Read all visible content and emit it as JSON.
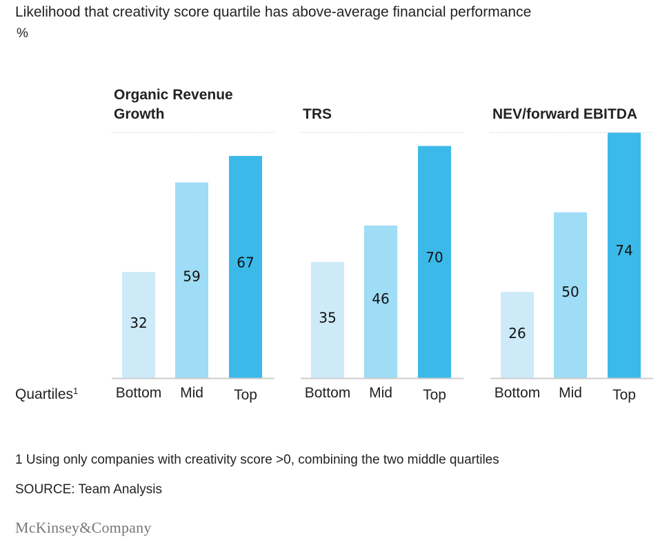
{
  "title": "Likelihood that creativity score quartile has above-average financial performance",
  "unit": "%",
  "row_label": "Quartiles",
  "row_label_sup": "1",
  "footnote": "1 Using only companies with creativity score >0, combining the two middle quartiles",
  "source": "SOURCE: Team Analysis",
  "logo_text": "McKinsey&Company",
  "colors": {
    "bottom": "#cdeaf8",
    "mid": "#9fdcf5",
    "top": "#3bbaea",
    "axis": "#cccccc",
    "divider": "#bbbbbb"
  },
  "chart_data": [
    {
      "type": "bar",
      "title_lines": [
        "Organic Revenue",
        "Growth"
      ],
      "categories": [
        "Bottom",
        "Mid",
        "Top"
      ],
      "values": [
        32,
        59,
        67
      ]
    },
    {
      "type": "bar",
      "title_lines": [
        "TRS"
      ],
      "categories": [
        "Bottom",
        "Mid",
        "Top"
      ],
      "values": [
        35,
        46,
        70
      ]
    },
    {
      "type": "bar",
      "title_lines": [
        "NEV/forward EBITDA"
      ],
      "categories": [
        "Bottom",
        "Mid",
        "Top"
      ],
      "values": [
        26,
        50,
        74
      ]
    }
  ]
}
